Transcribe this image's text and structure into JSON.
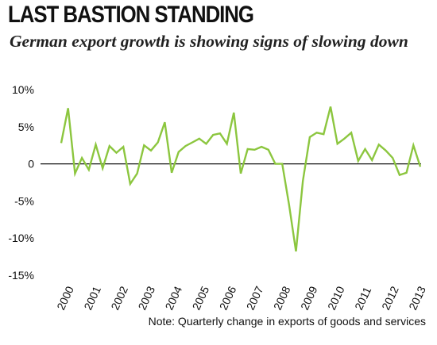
{
  "chart_data": {
    "type": "line",
    "title": "LAST BASTION STANDING",
    "subtitle": "German export growth is showing signs of slowing down",
    "note": "Note: Quarterly change in exports of goods and services",
    "xlabel": "",
    "ylabel": "",
    "ylim": [
      -15,
      10
    ],
    "yticks": [
      10,
      5,
      0,
      -5,
      -10,
      -15
    ],
    "ytick_labels": [
      "10%",
      "5%",
      "0",
      "-5%",
      "-10%",
      "-15%"
    ],
    "xtick_labels": [
      "2000",
      "2001",
      "2002",
      "2003",
      "2004",
      "2005",
      "2006",
      "2007",
      "2008",
      "2009",
      "2010",
      "2011",
      "2012",
      "2013"
    ],
    "grid": false,
    "line_color": "#8cc63f",
    "series": [
      {
        "values": [
          2.8,
          7.5,
          -1.3,
          0.8,
          -0.8,
          2.6,
          -0.6,
          2.4,
          1.5,
          2.3,
          -2.7,
          -1.3,
          2.5,
          1.8,
          2.9,
          5.6,
          -1.2,
          1.6,
          2.4,
          2.9,
          3.4,
          2.7,
          3.9,
          4.1,
          2.7,
          6.9,
          -1.3,
          2.0,
          1.9,
          2.3,
          1.9,
          0.0,
          0.0,
          -5.5,
          -11.8,
          -2.3,
          3.6,
          4.2,
          4.0,
          7.7,
          2.7,
          3.4,
          4.2,
          0.4,
          2.0,
          0.5,
          2.6,
          1.8,
          0.8,
          -1.5,
          -1.2,
          2.5,
          -0.4
        ]
      }
    ]
  }
}
